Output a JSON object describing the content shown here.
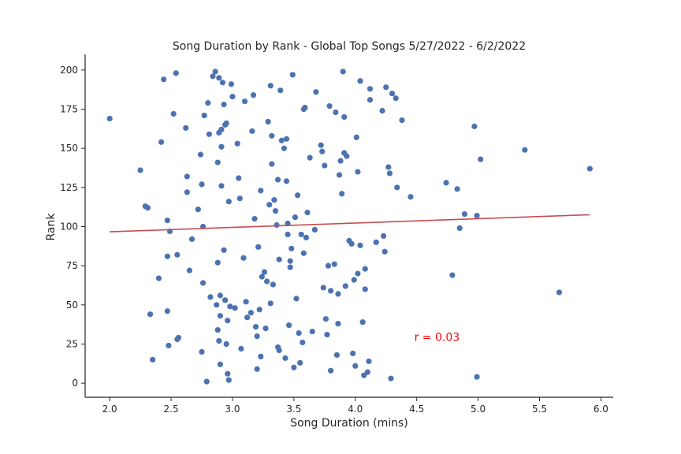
{
  "chart_data": {
    "type": "scatter",
    "title": "Song Duration by Rank - Global Top Songs 5/27/2022 - 6/2/2022",
    "xlabel": "Song Duration (mins)",
    "ylabel": "Rank",
    "xlim": [
      1.8,
      6.1
    ],
    "ylim": [
      -9,
      210
    ],
    "xticks": [
      2.0,
      2.5,
      3.0,
      3.5,
      4.0,
      4.5,
      5.0,
      5.5,
      6.0
    ],
    "xtick_labels": [
      "2.0",
      "2.5",
      "3.0",
      "3.5",
      "4.0",
      "4.5",
      "5.0",
      "5.5",
      "6.0"
    ],
    "yticks": [
      0,
      25,
      50,
      75,
      100,
      125,
      150,
      175,
      200
    ],
    "ytick_labels": [
      "0",
      "25",
      "50",
      "75",
      "100",
      "125",
      "150",
      "175",
      "200"
    ],
    "grid": false,
    "point_color": "#4c72b0",
    "trend_color": "#c44e52",
    "annotation_color": "#ff0000",
    "annotation": {
      "text": "r = 0.03",
      "x": 4.48,
      "y": 27
    },
    "trendline": {
      "x": [
        2.0,
        5.91
      ],
      "y": [
        96.7,
        107.6
      ]
    },
    "points": [
      [
        2.0,
        169
      ],
      [
        2.25,
        136
      ],
      [
        2.29,
        113
      ],
      [
        2.31,
        112
      ],
      [
        2.33,
        44
      ],
      [
        2.35,
        15
      ],
      [
        2.4,
        67
      ],
      [
        2.42,
        154
      ],
      [
        2.44,
        194
      ],
      [
        2.47,
        104
      ],
      [
        2.47,
        46
      ],
      [
        2.47,
        81
      ],
      [
        2.48,
        24
      ],
      [
        2.49,
        97
      ],
      [
        2.52,
        172
      ],
      [
        2.54,
        198
      ],
      [
        2.55,
        82
      ],
      [
        2.55,
        28
      ],
      [
        2.56,
        29
      ],
      [
        2.62,
        163
      ],
      [
        2.63,
        132
      ],
      [
        2.63,
        122
      ],
      [
        2.65,
        72
      ],
      [
        2.67,
        92
      ],
      [
        2.72,
        111
      ],
      [
        2.74,
        146
      ],
      [
        2.75,
        127
      ],
      [
        2.75,
        20
      ],
      [
        2.76,
        100
      ],
      [
        2.76,
        64
      ],
      [
        2.77,
        171
      ],
      [
        2.79,
        1
      ],
      [
        2.8,
        179
      ],
      [
        2.81,
        159
      ],
      [
        2.82,
        55
      ],
      [
        2.84,
        196
      ],
      [
        2.86,
        199
      ],
      [
        2.87,
        50
      ],
      [
        2.88,
        34
      ],
      [
        2.88,
        77
      ],
      [
        2.88,
        141
      ],
      [
        2.89,
        27
      ],
      [
        2.89,
        160
      ],
      [
        2.89,
        195
      ],
      [
        2.9,
        43
      ],
      [
        2.9,
        12
      ],
      [
        2.9,
        56
      ],
      [
        2.91,
        162
      ],
      [
        2.91,
        126
      ],
      [
        2.91,
        151
      ],
      [
        2.92,
        192
      ],
      [
        2.93,
        85
      ],
      [
        2.93,
        178
      ],
      [
        2.94,
        53
      ],
      [
        2.94,
        165
      ],
      [
        2.95,
        166
      ],
      [
        2.95,
        25
      ],
      [
        2.96,
        40
      ],
      [
        2.96,
        6
      ],
      [
        2.97,
        116
      ],
      [
        2.97,
        2
      ],
      [
        2.98,
        49
      ],
      [
        2.99,
        191
      ],
      [
        3.0,
        183
      ],
      [
        3.02,
        48
      ],
      [
        3.04,
        153
      ],
      [
        3.05,
        131
      ],
      [
        3.06,
        118
      ],
      [
        3.07,
        22
      ],
      [
        3.09,
        80
      ],
      [
        3.1,
        180
      ],
      [
        3.11,
        52
      ],
      [
        3.12,
        42
      ],
      [
        3.15,
        45
      ],
      [
        3.16,
        161
      ],
      [
        3.17,
        184
      ],
      [
        3.18,
        105
      ],
      [
        3.19,
        36
      ],
      [
        3.2,
        30
      ],
      [
        3.2,
        9
      ],
      [
        3.21,
        87
      ],
      [
        3.22,
        47
      ],
      [
        3.23,
        123
      ],
      [
        3.23,
        17
      ],
      [
        3.24,
        68
      ],
      [
        3.26,
        71
      ],
      [
        3.27,
        35
      ],
      [
        3.28,
        65
      ],
      [
        3.29,
        167
      ],
      [
        3.3,
        114
      ],
      [
        3.31,
        51
      ],
      [
        3.31,
        190
      ],
      [
        3.32,
        140
      ],
      [
        3.32,
        158
      ],
      [
        3.33,
        63
      ],
      [
        3.34,
        117
      ],
      [
        3.35,
        110
      ],
      [
        3.36,
        101
      ],
      [
        3.37,
        130
      ],
      [
        3.37,
        23
      ],
      [
        3.38,
        21
      ],
      [
        3.38,
        79
      ],
      [
        3.39,
        187
      ],
      [
        3.4,
        155
      ],
      [
        3.42,
        150
      ],
      [
        3.43,
        16
      ],
      [
        3.44,
        129
      ],
      [
        3.44,
        156
      ],
      [
        3.45,
        102
      ],
      [
        3.45,
        95
      ],
      [
        3.46,
        37
      ],
      [
        3.47,
        78
      ],
      [
        3.47,
        74
      ],
      [
        3.48,
        86
      ],
      [
        3.49,
        197
      ],
      [
        3.5,
        10
      ],
      [
        3.51,
        106
      ],
      [
        3.52,
        54
      ],
      [
        3.53,
        120
      ],
      [
        3.54,
        32
      ],
      [
        3.55,
        13
      ],
      [
        3.56,
        95
      ],
      [
        3.57,
        26
      ],
      [
        3.58,
        83
      ],
      [
        3.58,
        175
      ],
      [
        3.59,
        176
      ],
      [
        3.6,
        93
      ],
      [
        3.61,
        109
      ],
      [
        3.63,
        144
      ],
      [
        3.65,
        33
      ],
      [
        3.67,
        98
      ],
      [
        3.68,
        186
      ],
      [
        3.72,
        152
      ],
      [
        3.73,
        148
      ],
      [
        3.74,
        61
      ],
      [
        3.75,
        139
      ],
      [
        3.76,
        41
      ],
      [
        3.77,
        31
      ],
      [
        3.78,
        75
      ],
      [
        3.79,
        177
      ],
      [
        3.8,
        59
      ],
      [
        3.8,
        8
      ],
      [
        3.83,
        76
      ],
      [
        3.84,
        173
      ],
      [
        3.85,
        18
      ],
      [
        3.86,
        57
      ],
      [
        3.86,
        38
      ],
      [
        3.87,
        133
      ],
      [
        3.88,
        142
      ],
      [
        3.89,
        121
      ],
      [
        3.9,
        199
      ],
      [
        3.91,
        147
      ],
      [
        3.91,
        170
      ],
      [
        3.92,
        62
      ],
      [
        3.93,
        145
      ],
      [
        3.95,
        91
      ],
      [
        3.97,
        89
      ],
      [
        3.98,
        19
      ],
      [
        3.99,
        66
      ],
      [
        4.0,
        11
      ],
      [
        4.01,
        157
      ],
      [
        4.02,
        135
      ],
      [
        4.02,
        70
      ],
      [
        4.04,
        88
      ],
      [
        4.04,
        193
      ],
      [
        4.06,
        39
      ],
      [
        4.07,
        5
      ],
      [
        4.08,
        73
      ],
      [
        4.08,
        60
      ],
      [
        4.1,
        7
      ],
      [
        4.11,
        14
      ],
      [
        4.12,
        188
      ],
      [
        4.12,
        181
      ],
      [
        4.17,
        90
      ],
      [
        4.22,
        174
      ],
      [
        4.23,
        94
      ],
      [
        4.24,
        84
      ],
      [
        4.25,
        189
      ],
      [
        4.27,
        138
      ],
      [
        4.28,
        134
      ],
      [
        4.29,
        3
      ],
      [
        4.3,
        185
      ],
      [
        4.33,
        182
      ],
      [
        4.34,
        125
      ],
      [
        4.38,
        168
      ],
      [
        4.45,
        119
      ],
      [
        4.74,
        128
      ],
      [
        4.79,
        69
      ],
      [
        4.83,
        124
      ],
      [
        4.85,
        99
      ],
      [
        4.89,
        108
      ],
      [
        4.97,
        164
      ],
      [
        4.99,
        107
      ],
      [
        4.99,
        4
      ],
      [
        5.02,
        143
      ],
      [
        5.38,
        149
      ],
      [
        5.66,
        58
      ],
      [
        5.91,
        137
      ]
    ]
  }
}
